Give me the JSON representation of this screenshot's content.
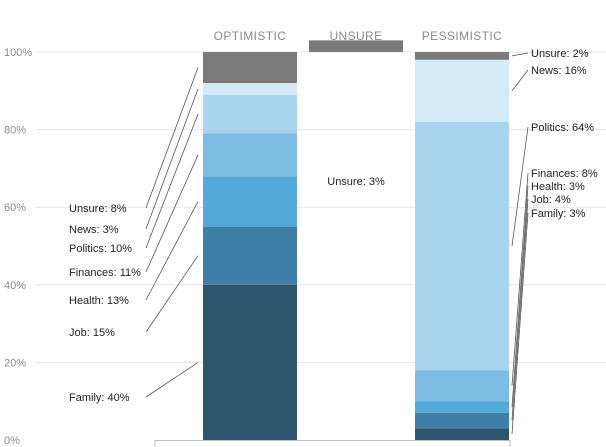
{
  "chart_data": {
    "type": "bar",
    "title": "",
    "xlabel": "",
    "ylabel": "",
    "ylim": [
      0,
      100
    ],
    "yticks": [
      "0%",
      "20%",
      "40%",
      "60%",
      "80%",
      "100%"
    ],
    "grid": true,
    "categories": [
      "OPTIMISTIC",
      "UNSURE",
      "PESSIMISTIC"
    ],
    "stacks": [
      {
        "category": "OPTIMISTIC",
        "segments": [
          {
            "name": "Family",
            "value": 40,
            "label": "Family: 40%",
            "color": "#2b566e"
          },
          {
            "name": "Job",
            "value": 15,
            "label": "Job: 15%",
            "color": "#3f7ea6"
          },
          {
            "name": "Health",
            "value": 13,
            "label": "Health: 13%",
            "color": "#53a9d9"
          },
          {
            "name": "Finances",
            "value": 11,
            "label": "Finances: 11%",
            "color": "#7dbce3"
          },
          {
            "name": "Politics",
            "value": 10,
            "label": "Politics: 10%",
            "color": "#a7d5ee"
          },
          {
            "name": "News",
            "value": 3,
            "label": "News: 3%",
            "color": "#d4eaf7"
          },
          {
            "name": "Unsure",
            "value": 8,
            "label": "Unsure: 8%",
            "color": "#7a7a7a"
          }
        ]
      },
      {
        "category": "UNSURE",
        "segments": [
          {
            "name": "Unsure",
            "value": 3,
            "label": "Unsure: 3%",
            "color": "#7a7a7a"
          }
        ]
      },
      {
        "category": "PESSIMISTIC",
        "segments": [
          {
            "name": "Family",
            "value": 3,
            "label": "Family: 3%",
            "color": "#2b566e"
          },
          {
            "name": "Job",
            "value": 4,
            "label": "Job: 4%",
            "color": "#3f7ea6"
          },
          {
            "name": "Health",
            "value": 3,
            "label": "Health: 3%",
            "color": "#53a9d9"
          },
          {
            "name": "Finances",
            "value": 8,
            "label": "Finances: 8%",
            "color": "#7dbce3"
          },
          {
            "name": "Politics",
            "value": 64,
            "label": "Politics: 64%",
            "color": "#a7d5ee"
          },
          {
            "name": "News",
            "value": 16,
            "label": "News: 16%",
            "color": "#d4eaf7"
          },
          {
            "name": "Unsure",
            "value": 2,
            "label": "Unsure: 2%",
            "color": "#7a7a7a"
          }
        ]
      }
    ],
    "colors": {
      "gridline": "#e6e6e6",
      "axis_text": "#8a8a8a",
      "header_text": "#8a8a8a",
      "label_text": "#222222",
      "leader_line": "#555555"
    }
  }
}
